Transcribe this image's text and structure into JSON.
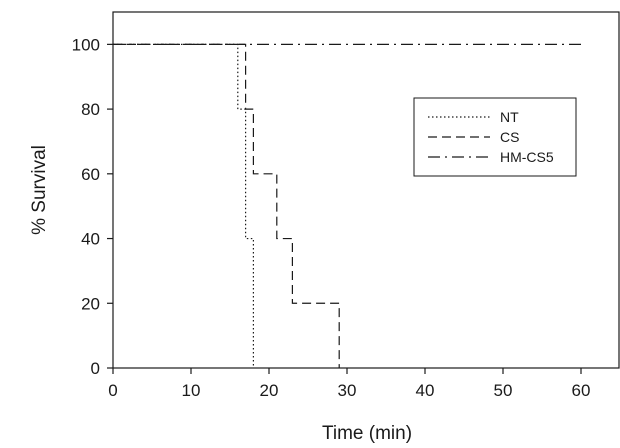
{
  "chart_data": {
    "type": "line",
    "step": true,
    "xlabel": "Time (min)",
    "ylabel": "% Survival",
    "xlim": [
      0,
      65
    ],
    "ylim": [
      0,
      110
    ],
    "xticks": [
      0,
      10,
      20,
      30,
      40,
      50,
      60
    ],
    "yticks": [
      0,
      20,
      40,
      60,
      80,
      100
    ],
    "grid": false,
    "legend_position": "upper-right",
    "series": [
      {
        "name": "NT",
        "line_style": "dotted",
        "color": "#1a1a1a",
        "x": [
          0,
          16,
          16,
          17,
          17,
          18,
          18
        ],
        "y": [
          100,
          100,
          80,
          80,
          40,
          40,
          0
        ]
      },
      {
        "name": "CS",
        "line_style": "dashed",
        "color": "#1a1a1a",
        "x": [
          0,
          17,
          17,
          18,
          18,
          21,
          21,
          23,
          23,
          29,
          29
        ],
        "y": [
          100,
          100,
          80,
          80,
          60,
          60,
          40,
          40,
          20,
          20,
          0
        ]
      },
      {
        "name": "HM-CS5",
        "line_style": "dash-dot",
        "color": "#1a1a1a",
        "x": [
          0,
          60
        ],
        "y": [
          100,
          100
        ]
      }
    ]
  }
}
